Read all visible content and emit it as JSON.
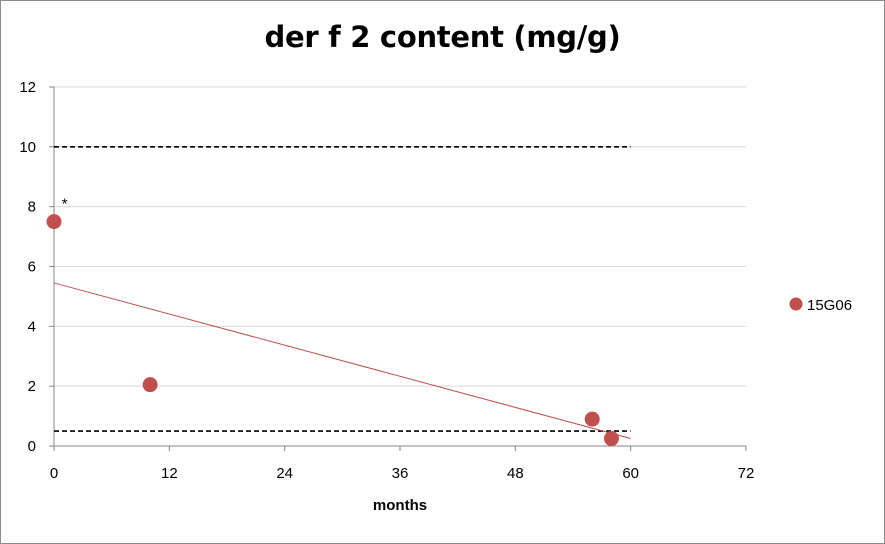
{
  "chart_data": {
    "type": "scatter",
    "title": "der f 2 content (mg/g)",
    "xlabel": "months",
    "ylabel": "",
    "xlim": [
      0,
      72
    ],
    "ylim": [
      0,
      12
    ],
    "xticks": [
      0,
      12,
      24,
      36,
      48,
      60,
      72
    ],
    "yticks": [
      0,
      2,
      4,
      6,
      8,
      10,
      12
    ],
    "grid": "horizontal",
    "legend_position": "right",
    "series": [
      {
        "name": "15G06",
        "color": "#c0504d",
        "points": [
          {
            "x": 0,
            "y": 7.5
          },
          {
            "x": 10,
            "y": 2.05
          },
          {
            "x": 56,
            "y": 0.9
          },
          {
            "x": 58,
            "y": 0.25
          }
        ]
      }
    ],
    "trendline": {
      "color": "#c0504d",
      "x": [
        0,
        60
      ],
      "y": [
        5.45,
        0.25
      ]
    },
    "reference_lines": [
      {
        "y": 10,
        "x_from": 0,
        "x_to": 60,
        "style": "dashed",
        "color": "#000000"
      },
      {
        "y": 0.5,
        "x_from": 0,
        "x_to": 60,
        "style": "dashed",
        "color": "#000000"
      }
    ],
    "annotations": [
      {
        "text": "*",
        "x": 0.8,
        "y": 8.0
      }
    ]
  }
}
